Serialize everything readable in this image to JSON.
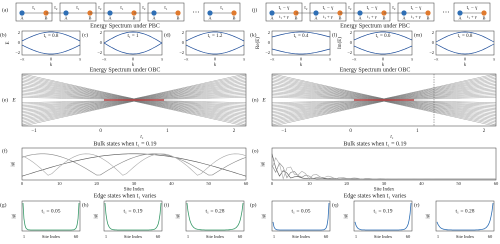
{
  "left": {
    "chain": {
      "label": "(a)",
      "intra": "t₁",
      "inter": "t₂",
      "A": "A",
      "B": "B",
      "ellipsis": "⋯"
    },
    "pbc": {
      "title": "Energy Spectrum under PBC",
      "panels": [
        {
          "label": "(b)",
          "param": "t₁ = 0.8",
          "ylabel": "E"
        },
        {
          "label": "(c)",
          "param": "t₁ = 1"
        },
        {
          "label": "(d)",
          "param": "t₁ = 1.2"
        }
      ],
      "yticks": [
        "2",
        "0",
        "−2"
      ],
      "xticks": [
        "−π",
        "0",
        "π"
      ],
      "xlabel": "k"
    },
    "obc": {
      "title": "Energy Spectrum under OBC",
      "label": "(e)",
      "ylabel": "E",
      "xticks": [
        "−1",
        "0",
        "1",
        "2"
      ],
      "xlabel": "t₁"
    },
    "bulk": {
      "label": "(f)",
      "title": "Bulk states when t₁ = 0.19",
      "ylabel": "|φ|",
      "xticks": [
        "0",
        "10",
        "20",
        "30",
        "40",
        "50",
        "60"
      ],
      "xlabel": "Site Index"
    },
    "edge": {
      "title": "Edge states when t₁ varies",
      "panels": [
        {
          "label": "(g)",
          "param": "t₁ = 0.05"
        },
        {
          "label": "(h)",
          "param": "t₁ = 0.19"
        },
        {
          "label": "(i)",
          "param": "t₁ = 0.28"
        }
      ],
      "ylabel": "|φ|",
      "xticks": [
        "1",
        "60"
      ],
      "xlabel": "Site Index"
    }
  },
  "right": {
    "chain": {
      "label": "(j)",
      "intra": "t₁ − γ",
      "intra2": "t₁ + γ",
      "inter": "t₂",
      "A": "A",
      "B": "B",
      "ellipsis": "⋯"
    },
    "pbc": {
      "title": "Energy Spectrum under PBC",
      "panels": [
        {
          "label": "(k)",
          "param": "t₁ = 0.4",
          "ylabel": "Re(E)"
        },
        {
          "label": "(l)",
          "param": "t₁ = 0.6",
          "ylabel": "Im(E)"
        },
        {
          "label": "(m)",
          "param": "t₁ = 0.8"
        }
      ],
      "yticks": [
        "2",
        "0",
        "−2"
      ],
      "xticks": [
        "−π",
        "0",
        "π"
      ],
      "xlabel": "k"
    },
    "obc": {
      "title": "Energy Spectrum under OBC",
      "label": "(n)",
      "ylabel": "E",
      "xticks": [
        "−1",
        "0",
        "1",
        "2"
      ],
      "xlabel": "t₁"
    },
    "bulk": {
      "label": "(o)",
      "title": "Bulk states when t₁ = 0.19",
      "ylabel": "|φ|",
      "xticks": [
        "0",
        "10",
        "20",
        "30",
        "40",
        "50",
        "60"
      ],
      "xlabel": "Site Index"
    },
    "edge": {
      "title": "Edge states when t₁ varies",
      "panels": [
        {
          "label": "(p)",
          "param": "t₁ = 0.05"
        },
        {
          "label": "(q)",
          "param": "t₁ = 0.19"
        },
        {
          "label": "(r)",
          "param": "t₁ = 0.28"
        }
      ],
      "ylabel": "|φ|",
      "xticks": [
        "1",
        "60"
      ],
      "xlabel": "Site Index"
    }
  }
}
